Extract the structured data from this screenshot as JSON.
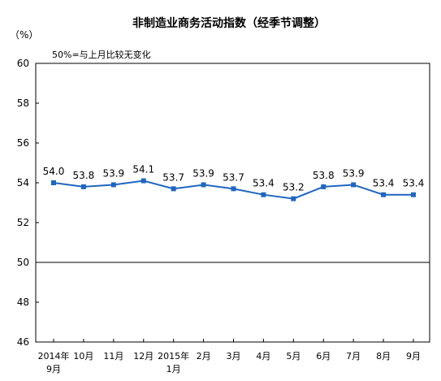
{
  "chart_data": {
    "type": "line",
    "title": "非制造业商务活动指数（经季节调整）",
    "unit_label": "（%）",
    "note": "50%=与上月比较无变化",
    "xlabel": "",
    "ylabel": "",
    "ylim": [
      46,
      60
    ],
    "yticks": [
      "60",
      "58",
      "56",
      "54",
      "52",
      "50",
      "48",
      "46"
    ],
    "reference_line": 50,
    "grid": false,
    "categories": [
      {
        "line1": "2014年",
        "line2": "9月"
      },
      {
        "line1": "10月",
        "line2": ""
      },
      {
        "line1": "11月",
        "line2": ""
      },
      {
        "line1": "12月",
        "line2": ""
      },
      {
        "line1": "2015年",
        "line2": "1月"
      },
      {
        "line1": "2月",
        "line2": ""
      },
      {
        "line1": "3月",
        "line2": ""
      },
      {
        "line1": "4月",
        "line2": ""
      },
      {
        "line1": "5月",
        "line2": ""
      },
      {
        "line1": "6月",
        "line2": ""
      },
      {
        "line1": "7月",
        "line2": ""
      },
      {
        "line1": "8月",
        "line2": ""
      },
      {
        "line1": "9月",
        "line2": ""
      }
    ],
    "values": [
      54.0,
      53.8,
      53.9,
      54.1,
      53.7,
      53.9,
      53.7,
      53.4,
      53.2,
      53.8,
      53.9,
      53.4,
      53.4
    ],
    "value_labels": [
      "54.0",
      "53.8",
      "53.9",
      "54.1",
      "53.7",
      "53.9",
      "53.7",
      "53.4",
      "53.2",
      "53.8",
      "53.9",
      "53.4",
      "53.4"
    ],
    "series_color": "#1f66c2"
  }
}
